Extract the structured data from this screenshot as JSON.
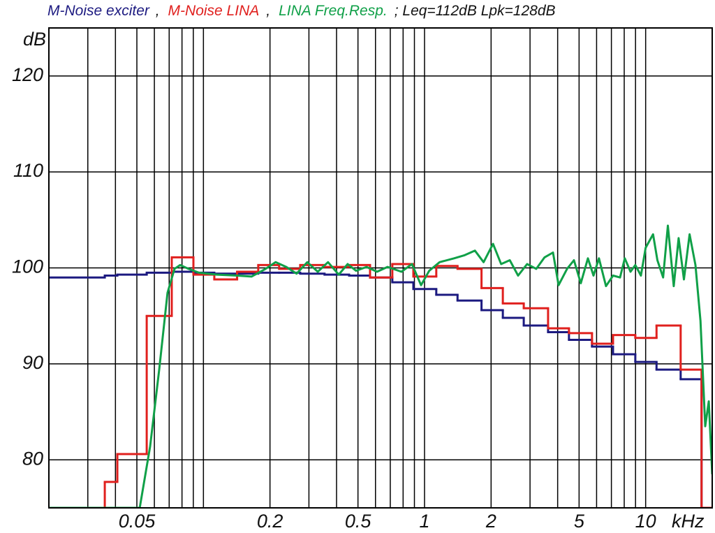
{
  "chart_data": {
    "type": "line",
    "y_label": "dB",
    "x_label": "kHz",
    "legend_separator": ",",
    "annotation": "; Leq=112dB Lpk=128dB",
    "x_scale": "log",
    "grid": true,
    "xlim": [
      0.02,
      20
    ],
    "ylim": [
      75,
      125
    ],
    "xticks": [
      0.05,
      0.2,
      0.5,
      1,
      2,
      5,
      10
    ],
    "xgrid": [
      0.03,
      0.04,
      0.06,
      0.07,
      0.08,
      0.09,
      0.1,
      0.3,
      0.4,
      0.6,
      0.7,
      0.8,
      0.9,
      3,
      4,
      6,
      7,
      8,
      9
    ],
    "yticks": [
      80,
      90,
      100,
      110,
      120
    ],
    "band_edges": [
      0.02,
      0.0358,
      0.0408,
      0.0554,
      0.0719,
      0.0901,
      0.112,
      0.142,
      0.177,
      0.22,
      0.274,
      0.353,
      0.456,
      0.567,
      0.715,
      0.89,
      1.13,
      1.41,
      1.81,
      2.26,
      2.81,
      3.62,
      4.5,
      5.72,
      7.12,
      8.98,
      11.2,
      14.4,
      17.9,
      20
    ],
    "series": [
      {
        "name": "M-Noise exciter",
        "color": "#1c1a80",
        "step": true,
        "values": [
          99.0,
          99.2,
          99.3,
          99.5,
          99.6,
          99.5,
          99.4,
          99.4,
          99.5,
          99.5,
          99.4,
          99.3,
          99.2,
          99.0,
          98.5,
          97.8,
          97.2,
          96.6,
          95.6,
          94.8,
          94.0,
          93.3,
          92.5,
          91.8,
          91.0,
          90.2,
          89.4,
          88.4,
          75
        ]
      },
      {
        "name": "M-Noise LINA",
        "color": "#e0201e",
        "step": true,
        "values": [
          75,
          77.7,
          80.6,
          95.0,
          101.1,
          99.3,
          98.8,
          99.6,
          100.3,
          99.9,
          100.3,
          100.1,
          100.3,
          99.0,
          100.4,
          99.1,
          100.2,
          99.9,
          97.9,
          96.3,
          95.8,
          93.7,
          93.2,
          92.1,
          93.0,
          92.7,
          94.0,
          89.4,
          75
        ]
      },
      {
        "name": "LINA Freq.Resp.",
        "color": "#10a048",
        "step": false,
        "x": [
          0.02,
          0.0515,
          0.0574,
          0.0631,
          0.0688,
          0.074,
          0.0785,
          0.0856,
          0.0955,
          0.115,
          0.142,
          0.165,
          0.191,
          0.212,
          0.237,
          0.264,
          0.295,
          0.329,
          0.366,
          0.409,
          0.449,
          0.49,
          0.547,
          0.61,
          0.68,
          0.786,
          0.877,
          0.964,
          1.05,
          1.17,
          1.36,
          1.51,
          1.69,
          1.85,
          2.04,
          2.22,
          2.43,
          2.65,
          2.91,
          3.2,
          3.49,
          3.81,
          4.04,
          4.41,
          4.74,
          5.09,
          5.48,
          5.81,
          6.15,
          6.62,
          7.12,
          7.66,
          8.05,
          8.54,
          8.98,
          9.52,
          10.0,
          10.8,
          11.3,
          12.0,
          12.6,
          13.4,
          14.1,
          14.9,
          15.8,
          16.8,
          17.7,
          18.6,
          19.3,
          20
        ],
        "values": [
          75,
          75,
          81.4,
          89.4,
          97.4,
          99.9,
          100.3,
          99.9,
          99.5,
          99.3,
          99.2,
          99.1,
          99.9,
          100.6,
          100.1,
          99.4,
          100.6,
          99.6,
          100.6,
          99.3,
          100.4,
          99.7,
          100.1,
          99.6,
          100.1,
          99.6,
          100.4,
          98.2,
          99.7,
          100.6,
          101.0,
          101.3,
          101.8,
          100.6,
          102.5,
          100.4,
          100.8,
          99.2,
          100.4,
          99.9,
          101.1,
          101.6,
          98.2,
          99.9,
          100.8,
          98.4,
          101.0,
          99.2,
          101.0,
          98.1,
          99.2,
          99.0,
          101.0,
          99.6,
          100.3,
          99.2,
          102.1,
          103.5,
          100.8,
          99.0,
          104.4,
          98.1,
          103.1,
          98.8,
          103.5,
          100.3,
          94.5,
          83.5,
          86.1,
          78.5
        ]
      }
    ]
  }
}
